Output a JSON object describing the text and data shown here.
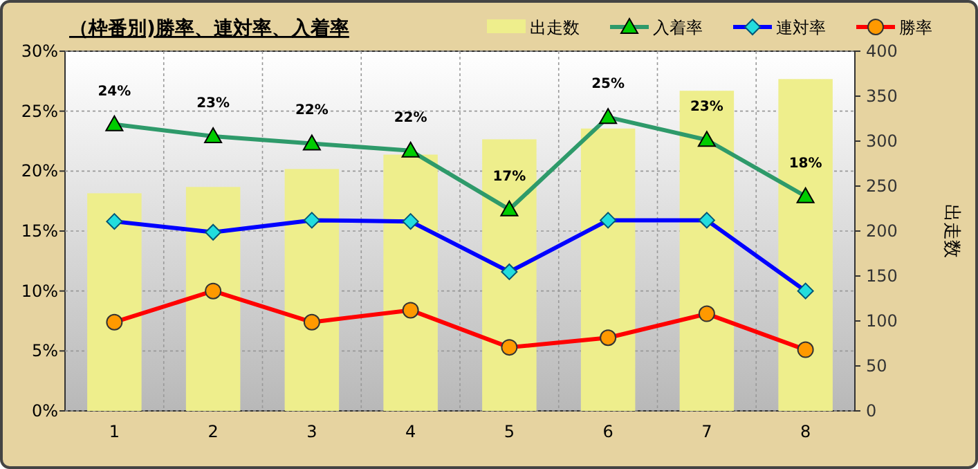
{
  "chart_data": {
    "type": "line",
    "title": "（枠番別)勝率、連対率、入着率",
    "categories": [
      "1",
      "2",
      "3",
      "4",
      "5",
      "6",
      "7",
      "8"
    ],
    "series": [
      {
        "name": "出走数",
        "type": "bar",
        "axis": "y2",
        "color": "#eeee8c",
        "values": [
          242,
          249,
          269,
          285,
          302,
          314,
          356,
          369
        ]
      },
      {
        "name": "入着率",
        "color": "#2e9a6a",
        "colors": [
          "#00cc00",
          "#00cc00",
          "#00cc00",
          "#00cc00",
          "#00cc00",
          "#00cc00",
          "#00cc00",
          "#00cc00"
        ],
        "marker": "triangle",
        "values": [
          23.9,
          22.9,
          22.3,
          21.7,
          16.8,
          24.5,
          22.6,
          17.9
        ],
        "value_labels": [
          "24%",
          "23%",
          "22%",
          "22%",
          "17%",
          "25%",
          "23%",
          "18%"
        ]
      },
      {
        "name": "連対率",
        "color": "#0000ff",
        "colors": [
          "#22dddd",
          "#22dddd",
          "#22dddd",
          "#22dddd",
          "#22dddd",
          "#22dddd",
          "#22dddd",
          "#22dddd"
        ],
        "marker": "diamond",
        "values": [
          15.8,
          14.9,
          15.9,
          15.8,
          11.6,
          15.9,
          15.9,
          10.0
        ]
      },
      {
        "name": "勝率",
        "color": "#ff0000",
        "colors": [
          "#ff9900",
          "#ff9900",
          "#ff9900",
          "#ff9900",
          "#ff9900",
          "#ff9900",
          "#ff9900",
          "#ff9900"
        ],
        "marker": "circle",
        "values": [
          7.4,
          10.0,
          7.4,
          8.4,
          5.3,
          6.1,
          8.1,
          5.1
        ]
      }
    ],
    "ylim": [
      0,
      30
    ],
    "yticks": [
      {
        "value": 0,
        "label": "0%"
      },
      {
        "value": 5,
        "label": "5%"
      },
      {
        "value": 10,
        "label": "10%"
      },
      {
        "value": 15,
        "label": "15%"
      },
      {
        "value": 20,
        "label": "20%"
      },
      {
        "value": 25,
        "label": "25%"
      },
      {
        "value": 30,
        "label": "30%"
      }
    ],
    "y2lim": [
      0,
      400
    ],
    "y2ticks": [
      0,
      50,
      100,
      150,
      200,
      250,
      300,
      350,
      400
    ],
    "y2label": "出走数",
    "grid": true,
    "legend": "top right"
  }
}
